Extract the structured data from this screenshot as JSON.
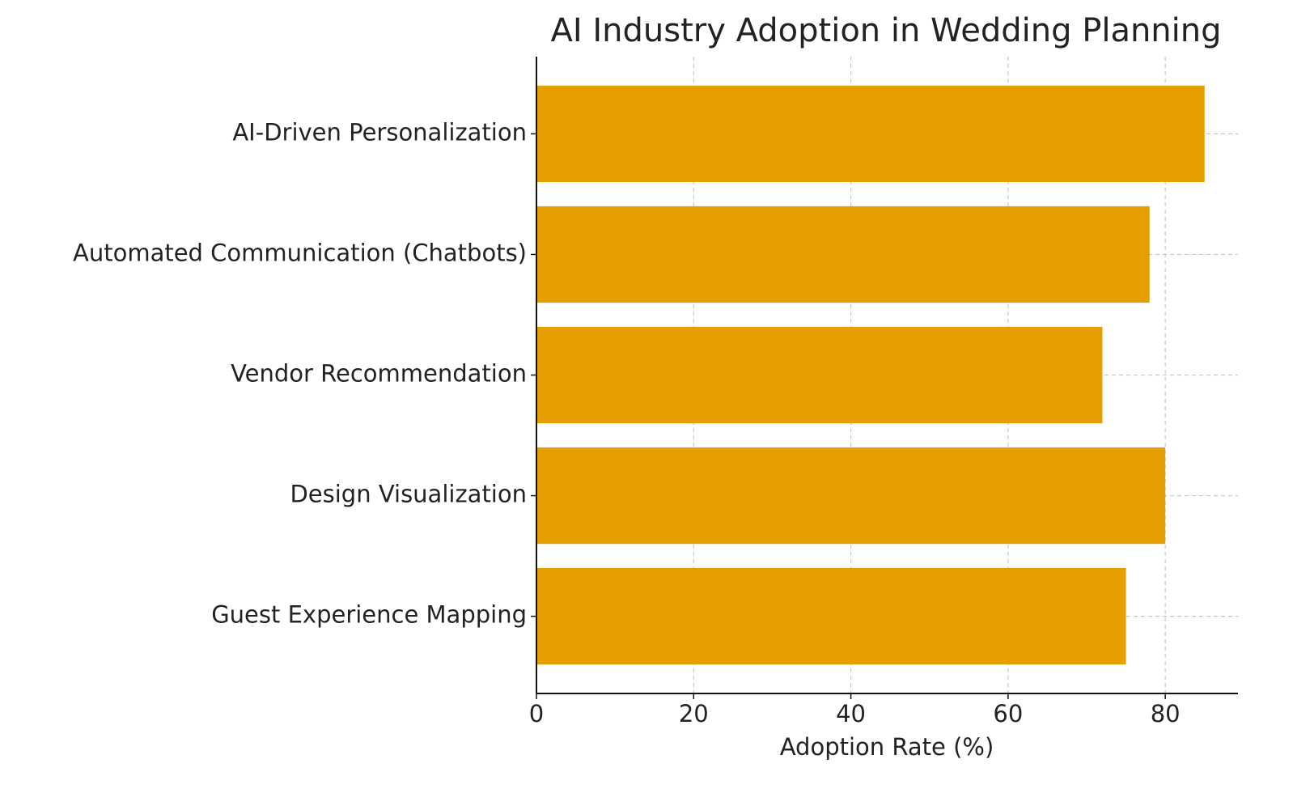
{
  "chart_data": {
    "type": "barh",
    "title": "AI Industry Adoption in Wedding Planning",
    "xlabel": "Adoption Rate (%)",
    "categories": [
      "AI-Driven Personalization",
      "Automated Communication (Chatbots)",
      "Vendor Recommendation",
      "Design Visualization",
      "Guest Experience Mapping"
    ],
    "values": [
      85,
      78,
      72,
      80,
      75
    ],
    "color": "#e69f00",
    "xlim": [
      0,
      89.25
    ],
    "xticks": [
      0,
      20,
      40,
      60,
      80
    ],
    "grid": true
  }
}
